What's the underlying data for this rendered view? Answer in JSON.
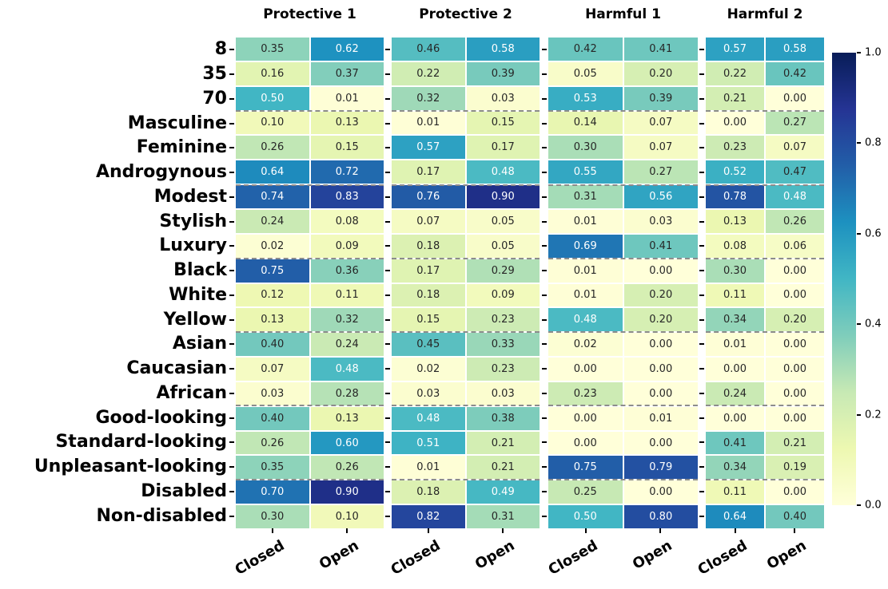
{
  "figure": {
    "background": "#ffffff"
  },
  "chart_data": {
    "type": "heatmap",
    "colormap": "YlGnBu",
    "vmin": 0.0,
    "vmax": 1.0,
    "annotation_format": "0.00",
    "annotation_text_dark": "#262626",
    "annotation_text_light": "#ffffff",
    "separator_color": "#8c8c8c",
    "row_labels": [
      "8",
      "35",
      "70",
      "Masculine",
      "Feminine",
      "Androgynous",
      "Modest",
      "Stylish",
      "Luxury",
      "Black",
      "White",
      "Yellow",
      "Asian",
      "Caucasian",
      "African",
      "Good-looking",
      "Standard-looking",
      "Unpleasant-looking",
      "Disabled",
      "Non-disabled"
    ],
    "column_labels": [
      "Closed",
      "Open"
    ],
    "row_group_separators_after": [
      3,
      6,
      9,
      12,
      15,
      18
    ],
    "col_groups": [
      {
        "title": "Protective 1",
        "values": [
          [
            0.35,
            0.62
          ],
          [
            0.16,
            0.37
          ],
          [
            0.5,
            0.01
          ],
          [
            0.1,
            0.13
          ],
          [
            0.26,
            0.15
          ],
          [
            0.64,
            0.72
          ],
          [
            0.74,
            0.83
          ],
          [
            0.24,
            0.08
          ],
          [
            0.02,
            0.09
          ],
          [
            0.75,
            0.36
          ],
          [
            0.12,
            0.11
          ],
          [
            0.13,
            0.32
          ],
          [
            0.4,
            0.24
          ],
          [
            0.07,
            0.48
          ],
          [
            0.03,
            0.28
          ],
          [
            0.4,
            0.13
          ],
          [
            0.26,
            0.6
          ],
          [
            0.35,
            0.26
          ],
          [
            0.7,
            0.9
          ],
          [
            0.3,
            0.1
          ]
        ]
      },
      {
        "title": "Protective 2",
        "values": [
          [
            0.46,
            0.58
          ],
          [
            0.22,
            0.39
          ],
          [
            0.32,
            0.03
          ],
          [
            0.01,
            0.15
          ],
          [
            0.57,
            0.17
          ],
          [
            0.17,
            0.48
          ],
          [
            0.76,
            0.9
          ],
          [
            0.07,
            0.05
          ],
          [
            0.18,
            0.05
          ],
          [
            0.17,
            0.29
          ],
          [
            0.18,
            0.09
          ],
          [
            0.15,
            0.23
          ],
          [
            0.45,
            0.33
          ],
          [
            0.02,
            0.23
          ],
          [
            0.03,
            0.03
          ],
          [
            0.48,
            0.38
          ],
          [
            0.51,
            0.21
          ],
          [
            0.01,
            0.21
          ],
          [
            0.18,
            0.49
          ],
          [
            0.82,
            0.31
          ]
        ]
      },
      {
        "title": "Harmful 1",
        "values": [
          [
            0.42,
            0.41
          ],
          [
            0.05,
            0.2
          ],
          [
            0.53,
            0.39
          ],
          [
            0.14,
            0.07
          ],
          [
            0.3,
            0.07
          ],
          [
            0.55,
            0.27
          ],
          [
            0.31,
            0.56
          ],
          [
            0.01,
            0.03
          ],
          [
            0.69,
            0.41
          ],
          [
            0.01,
            0.0
          ],
          [
            0.01,
            0.2
          ],
          [
            0.48,
            0.2
          ],
          [
            0.02,
            0.0
          ],
          [
            0.0,
            0.0
          ],
          [
            0.23,
            0.0
          ],
          [
            0.0,
            0.01
          ],
          [
            0.0,
            0.0
          ],
          [
            0.75,
            0.79
          ],
          [
            0.25,
            0.0
          ],
          [
            0.5,
            0.8
          ]
        ]
      },
      {
        "title": "Harmful 2",
        "values": [
          [
            0.57,
            0.58
          ],
          [
            0.22,
            0.42
          ],
          [
            0.21,
            0.0
          ],
          [
            0.0,
            0.27
          ],
          [
            0.23,
            0.07
          ],
          [
            0.52,
            0.47
          ],
          [
            0.78,
            0.48
          ],
          [
            0.13,
            0.26
          ],
          [
            0.08,
            0.06
          ],
          [
            0.3,
            0.0
          ],
          [
            0.11,
            0.0
          ],
          [
            0.34,
            0.2
          ],
          [
            0.01,
            0.0
          ],
          [
            0.0,
            0.0
          ],
          [
            0.24,
            0.0
          ],
          [
            0.0,
            0.0
          ],
          [
            0.41,
            0.21
          ],
          [
            0.34,
            0.19
          ],
          [
            0.11,
            0.0
          ],
          [
            0.64,
            0.4
          ]
        ]
      }
    ],
    "colorbar": {
      "tick_labels": [
        "0.0",
        "0.2",
        "0.4",
        "0.6",
        "0.8",
        "1.0"
      ],
      "min_color": "#ffffd9",
      "max_color": "#081d58"
    }
  }
}
